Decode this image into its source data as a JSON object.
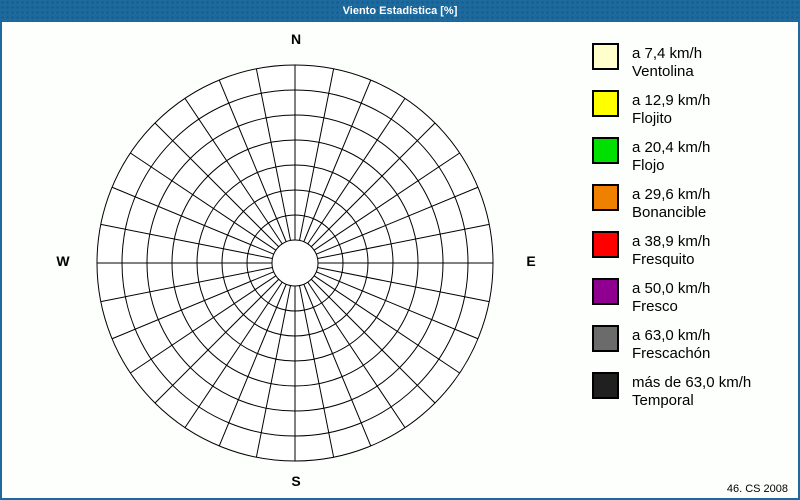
{
  "window": {
    "title": "Viento Estadística [%]",
    "titlebar_color": "#1D6A9E",
    "border_color": "#1D6A9E",
    "background_color": "#FDFFFD"
  },
  "compass": {
    "north": "N",
    "east": "E",
    "south": "S",
    "west": "W"
  },
  "legend": {
    "items": [
      {
        "speed": "a 7,4 km/h",
        "name": "Ventolina",
        "color": "#FFFFCC"
      },
      {
        "speed": "a 12,9 km/h",
        "name": "Flojito",
        "color": "#FFFF00"
      },
      {
        "speed": "a 20,4 km/h",
        "name": "Flojo",
        "color": "#00E000"
      },
      {
        "speed": "a 29,6 km/h",
        "name": "Bonancible",
        "color": "#F08000"
      },
      {
        "speed": "a 38,9 km/h",
        "name": "Fresquito",
        "color": "#FF0000"
      },
      {
        "speed": "a 50,0 km/h",
        "name": "Fresco",
        "color": "#900090"
      },
      {
        "speed": "a 63,0 km/h",
        "name": "Frescachón",
        "color": "#6B6B6B"
      },
      {
        "speed": "más de 63,0 km/h",
        "name": "Temporal",
        "color": "#202020"
      }
    ]
  },
  "footer": {
    "credit": "46. CS 2008"
  },
  "chart_data": {
    "type": "wind-rose-polar-grid",
    "title": "Viento Estadística [%]",
    "units": "%",
    "sectors": 32,
    "circles_total": 8,
    "intermediate_rings": 6,
    "compass_labels": [
      "N",
      "E",
      "S",
      "W"
    ],
    "grid_color": "#000000",
    "fill_color": "#FFFFFF",
    "series": [],
    "note_visible_content": "empty polar grid, no wind frequency data plotted",
    "categories": [
      "a 7,4 km/h Ventolina",
      "a 12,9 km/h Flojito",
      "a 20,4 km/h Flojo",
      "a 29,6 km/h Bonancible",
      "a 38,9 km/h Fresquito",
      "a 50,0 km/h Fresco",
      "a 63,0 km/h Frescachón",
      "más de 63,0 km/h Temporal"
    ],
    "legend_position": "right"
  }
}
